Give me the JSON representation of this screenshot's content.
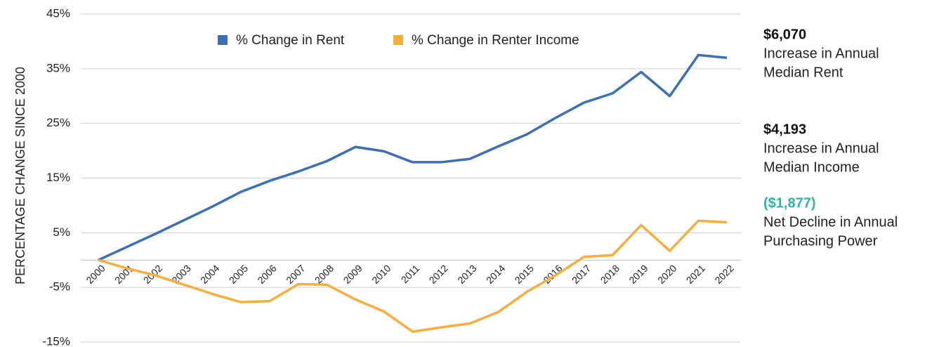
{
  "chart_data": {
    "type": "line",
    "y_label": "PERCENTAGE CHANGE SINCE 2000",
    "categories": [
      "2000",
      "2001",
      "2002",
      "2003",
      "2004",
      "2005",
      "2006",
      "2007",
      "2008",
      "2009",
      "2010",
      "2011",
      "2012",
      "2013",
      "2014",
      "2015",
      "2016",
      "2017",
      "2018",
      "2019",
      "2020",
      "2021",
      "2022"
    ],
    "series": [
      {
        "name": "% Change in Rent",
        "color": "#3b6fb6",
        "values": [
          0,
          2.4,
          4.8,
          7.3,
          9.8,
          12.5,
          14.5,
          16.2,
          18.1,
          20.7,
          19.9,
          17.9,
          17.9,
          18.5,
          20.8,
          23,
          26,
          28.8,
          30.5,
          34.4,
          30,
          37.5,
          37
        ]
      },
      {
        "name": "% Change in Renter Income",
        "color": "#f6ae3d",
        "values": [
          0,
          -1.5,
          -2.8,
          -4.5,
          -6.2,
          -7.7,
          -7.5,
          -4.4,
          -4.5,
          -7.2,
          -9.4,
          -13.1,
          -12.3,
          -11.6,
          -9.5,
          -5.8,
          -2.8,
          0.6,
          0.9,
          6.4,
          1.7,
          7.2,
          6.9
        ]
      }
    ],
    "ylim": [
      -15,
      45
    ],
    "yticks": [
      {
        "value": -15,
        "label": "-15%"
      },
      {
        "value": -5,
        "label": "-5%"
      },
      {
        "value": 5,
        "label": "5%"
      },
      {
        "value": 15,
        "label": "15%"
      },
      {
        "value": 25,
        "label": "25%"
      },
      {
        "value": 35,
        "label": "35%"
      },
      {
        "value": 45,
        "label": "45%"
      }
    ],
    "grid": true,
    "legend": "top",
    "annotations": [
      {
        "label": "$6,070",
        "color": "#111111",
        "text": [
          "Increase in Annual",
          "Median Rent"
        ]
      },
      {
        "label": "$4,193",
        "color": "#111111",
        "text": [
          "Increase in Annual",
          "Median Income"
        ]
      },
      {
        "label": "($1,877)",
        "color": "#2bb3ad",
        "text": [
          "Net Decline in Annual",
          "Purchasing Power"
        ]
      }
    ]
  }
}
